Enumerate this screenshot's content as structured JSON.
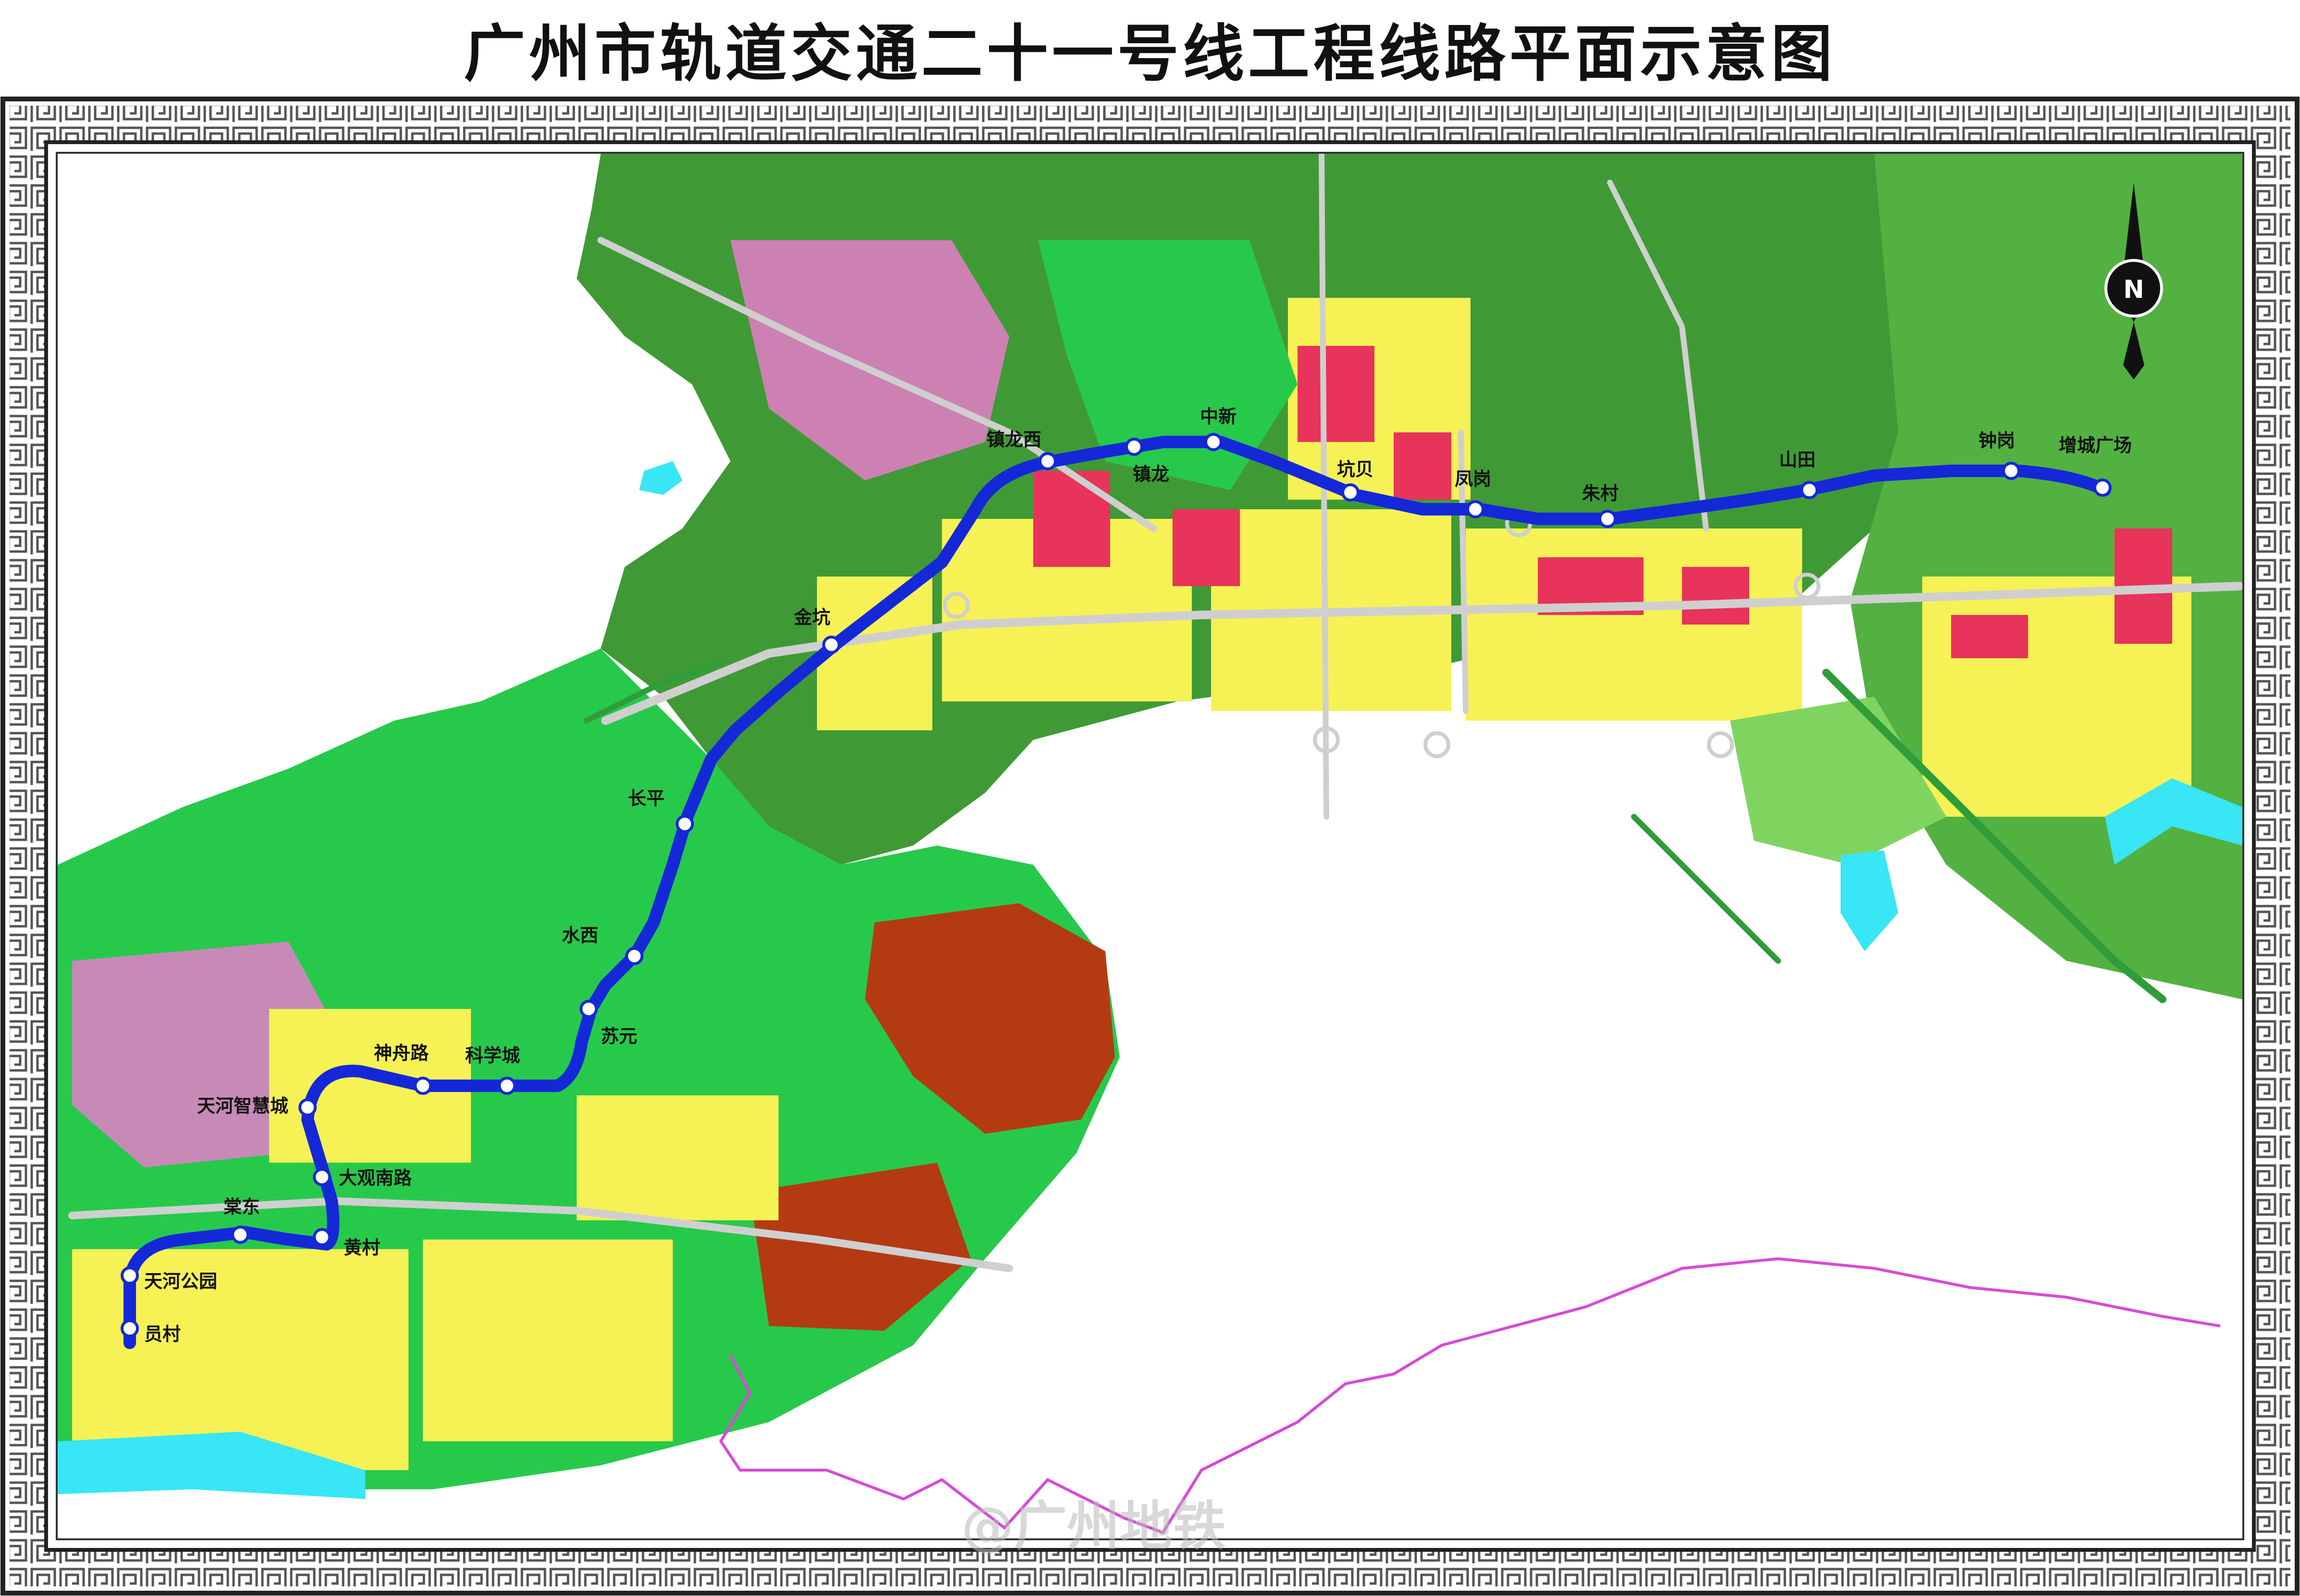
{
  "title": "广州市轨道交通二十一号线工程线路平面示意图",
  "north_label": "N",
  "watermark": "@广州地铁",
  "colors": {
    "line": "#1428d8",
    "station_fill": "#ffffff",
    "forest": "#3f9a36",
    "greenland": "#27c94b",
    "residential": "#f6f155",
    "commercial": "#e8335a",
    "industrial": "#b43a12",
    "pink": "#f07ad2",
    "water": "#38e6f5",
    "boundary": "#d84ad8"
  },
  "stations": [
    {
      "name": "员村"
    },
    {
      "name": "天河公园"
    },
    {
      "name": "棠东"
    },
    {
      "name": "黄村"
    },
    {
      "name": "大观南路"
    },
    {
      "name": "天河智慧城"
    },
    {
      "name": "神舟路"
    },
    {
      "name": "科学城"
    },
    {
      "name": "苏元"
    },
    {
      "name": "水西"
    },
    {
      "name": "长平"
    },
    {
      "name": "金坑"
    },
    {
      "name": "镇龙西"
    },
    {
      "name": "镇龙"
    },
    {
      "name": "中新"
    },
    {
      "name": "坑贝"
    },
    {
      "name": "凤岗"
    },
    {
      "name": "朱村"
    },
    {
      "name": "山田"
    },
    {
      "name": "钟岗"
    },
    {
      "name": "增城广场"
    }
  ]
}
